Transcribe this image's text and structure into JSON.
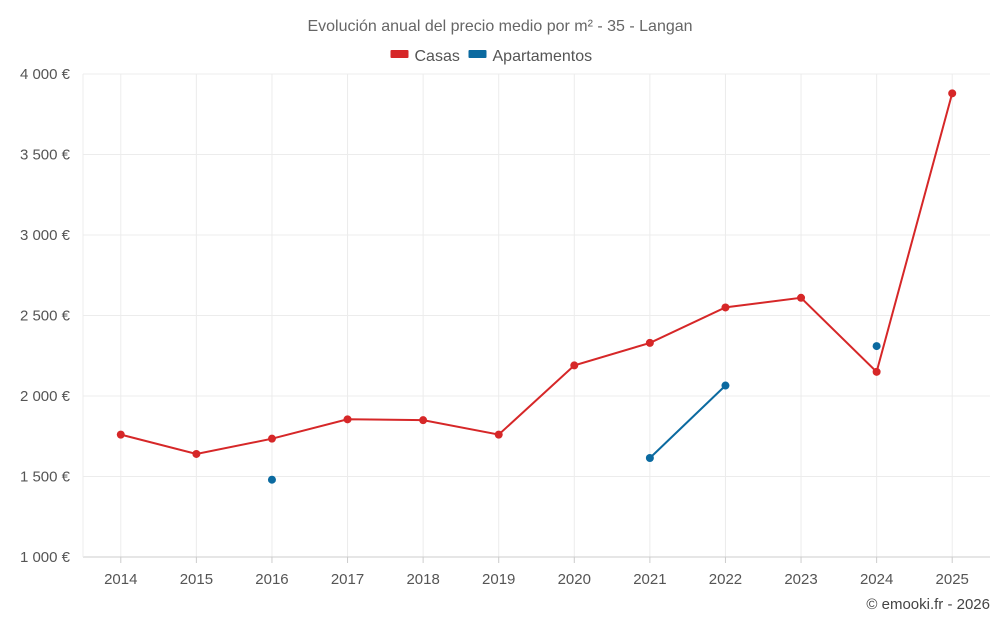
{
  "chart_data": {
    "type": "line",
    "title": "Evolución anual del precio medio por m² - 35 - Langan",
    "categories": [
      "2014",
      "2015",
      "2016",
      "2017",
      "2018",
      "2019",
      "2020",
      "2021",
      "2022",
      "2023",
      "2024",
      "2025"
    ],
    "ylim": [
      1000,
      4000
    ],
    "yticks": [
      1000,
      1500,
      2000,
      2500,
      3000,
      3500,
      4000
    ],
    "ytick_labels": [
      "1 000 €",
      "1 500 €",
      "2 000 €",
      "2 500 €",
      "3 000 €",
      "3 500 €",
      "4 000 €"
    ],
    "series": [
      {
        "name": "Casas",
        "color": "#d62728",
        "values": [
          1760,
          1640,
          1735,
          1855,
          1850,
          1760,
          2190,
          2330,
          2550,
          2610,
          2150,
          3880
        ]
      },
      {
        "name": "Apartamentos",
        "color": "#0b6aa0",
        "values": [
          null,
          null,
          1480,
          null,
          null,
          null,
          null,
          1615,
          2065,
          null,
          2310,
          null
        ]
      }
    ],
    "legend_position": "top-center",
    "grid": true
  },
  "credit": "© emooki.fr - 2026"
}
